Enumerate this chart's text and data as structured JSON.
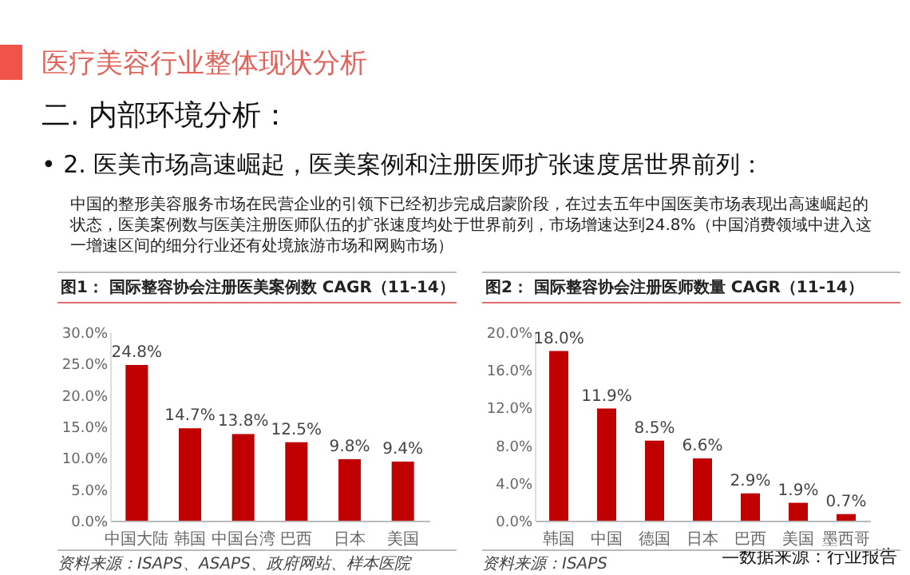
{
  "chart_data": [
    {
      "type": "other",
      "title": "医疗美容行业整体现状分析",
      "annotations": [
        "二. 内部环境分析：",
        "•  2. 医美市场高速崛起，医美案例和注册医师扩张速度居世界前列：",
        "中国的整形美容服务市场在民营企业的引领下已经初步完成启蒙阶段，在过去五年中国医美市场表现出高速崛起的状态，医美案例数与医美注册医师队伍的扩张速度均处于世界前列，市场增速达到24.8%（中国消费领域中进入这一增速区间的细分行业还有处境旅游市场和网购市场）",
        "—数据来源：行业报告"
      ]
    },
    {
      "type": "bar",
      "title": "图1： 国际整容协会注册医美案例数 CAGR（11-14）",
      "categories": [
        "中国大陆",
        "韩国",
        "中国台湾",
        "巴西",
        "日本",
        "美国"
      ],
      "values": [
        24.8,
        14.7,
        13.8,
        12.5,
        9.8,
        9.4
      ],
      "value_labels": [
        "24.8%",
        "14.7%",
        "13.8%",
        "12.5%",
        "9.8%",
        "9.4%"
      ],
      "color": "#c00000",
      "ylim": [
        0,
        30
      ],
      "yticks": [
        {
          "value": 0,
          "label": "0.0%"
        },
        {
          "value": 5,
          "label": "5.0%"
        },
        {
          "value": 10,
          "label": "10.0%"
        },
        {
          "value": 15,
          "label": "15.0%"
        },
        {
          "value": 20,
          "label": "20.0%"
        },
        {
          "value": 25,
          "label": "25.0%"
        },
        {
          "value": 30,
          "label": "30.0%"
        }
      ],
      "annotations": [
        "资料来源：ISAPS、ASAPS、政府网站、样本医院"
      ]
    },
    {
      "type": "bar",
      "title": "图2： 国际整容协会注册医师数量 CAGR（11-14）",
      "categories": [
        "韩国",
        "中国",
        "德国",
        "日本",
        "巴西",
        "美国",
        "墨西哥"
      ],
      "values": [
        18.0,
        11.9,
        8.5,
        6.6,
        2.9,
        1.9,
        0.7
      ],
      "value_labels": [
        "18.0%",
        "11.9%",
        "8.5%",
        "6.6%",
        "2.9%",
        "1.9%",
        "0.7%"
      ],
      "color": "#c00000",
      "ylim": [
        0,
        20
      ],
      "yticks": [
        {
          "value": 0,
          "label": "0.0%"
        },
        {
          "value": 4,
          "label": "4.0%"
        },
        {
          "value": 8,
          "label": "8.0%"
        },
        {
          "value": 12,
          "label": "12.0%"
        },
        {
          "value": 16,
          "label": "16.0%"
        },
        {
          "value": 20,
          "label": "20.0%"
        }
      ],
      "annotations": [
        "资料来源：ISAPS"
      ]
    }
  ]
}
